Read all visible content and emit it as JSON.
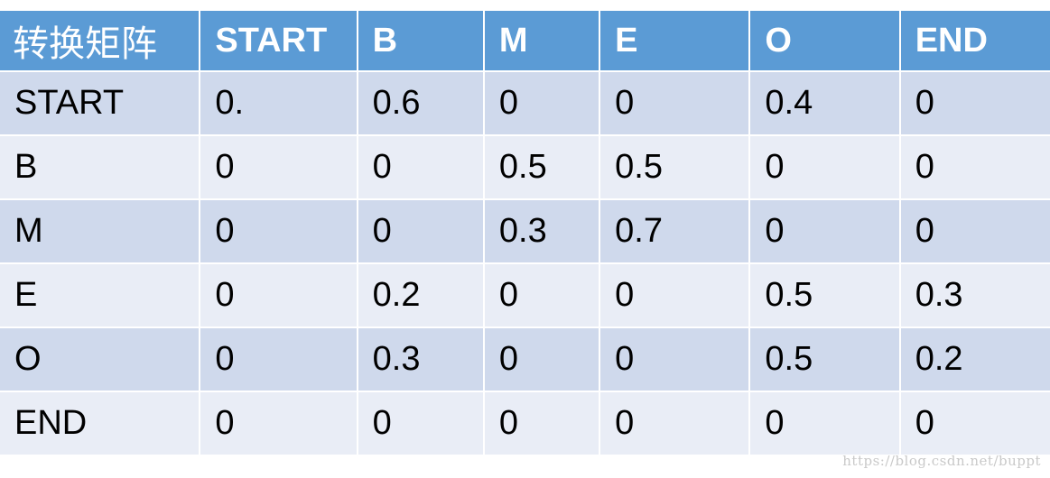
{
  "table": {
    "corner_label": "转换矩阵",
    "columns": [
      "START",
      "B",
      "M",
      "E",
      "O",
      "END"
    ],
    "rows": [
      {
        "label": "START",
        "values": [
          "0.",
          "0.6",
          "0",
          "0",
          "0.4",
          "0"
        ]
      },
      {
        "label": "B",
        "values": [
          "0",
          "0",
          "0.5",
          "0.5",
          "0",
          "0"
        ]
      },
      {
        "label": "M",
        "values": [
          "0",
          "0",
          "0.3",
          "0.7",
          "0",
          "0"
        ]
      },
      {
        "label": "E",
        "values": [
          "0",
          "0.2",
          "0",
          "0",
          "0.5",
          "0.3"
        ]
      },
      {
        "label": "O",
        "values": [
          "0",
          "0.3",
          "0",
          "0",
          "0.5",
          "0.2"
        ]
      },
      {
        "label": "END",
        "values": [
          "0",
          "0",
          "0",
          "0",
          "0",
          "0"
        ]
      }
    ]
  },
  "watermark": "https://blog.csdn.net/buppt",
  "colors": {
    "header_bg": "#5b9bd5",
    "row_odd_bg": "#cfd9ec",
    "row_even_bg": "#e9edf6"
  }
}
